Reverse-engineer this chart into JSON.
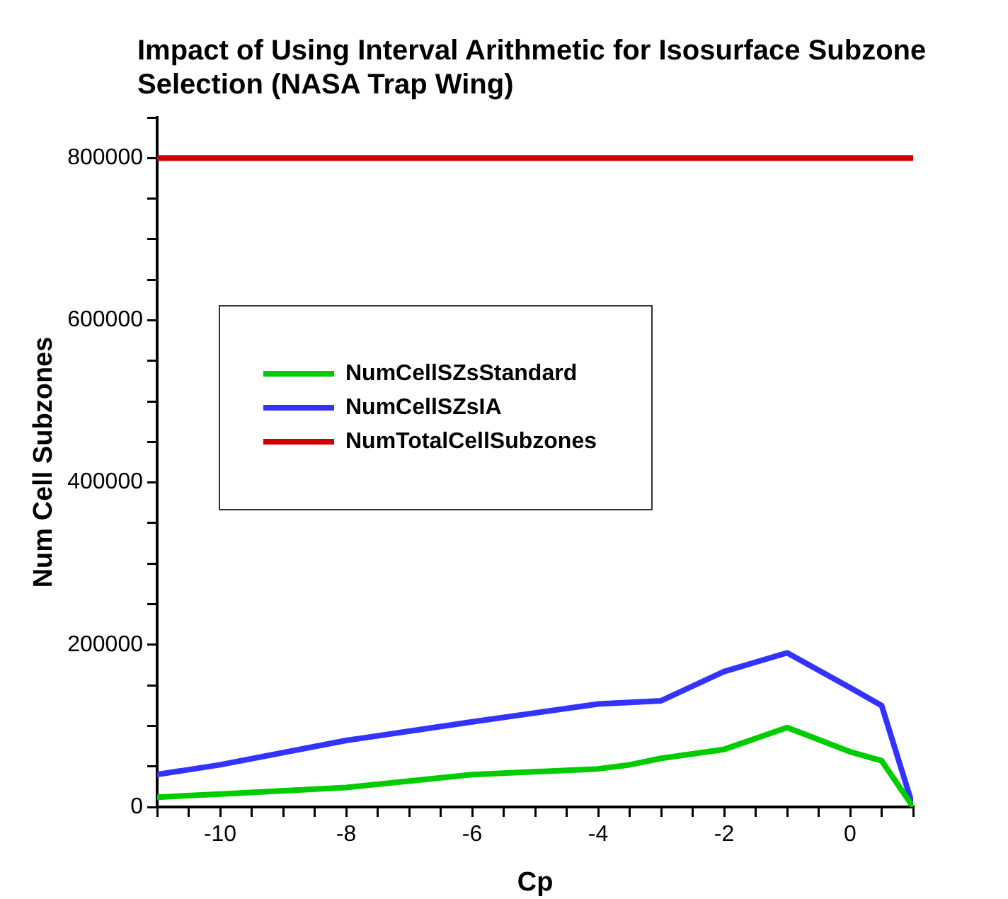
{
  "chart_data": {
    "type": "line",
    "title": "Impact of Using Interval Arithmetic for Isosurface Subzone Selection (NASA Trap Wing)",
    "xlabel": "Cp",
    "ylabel": "Num Cell Subzones",
    "series": [
      {
        "name": "NumCellSZsStandard",
        "color": "#00cc00",
        "x": [
          -11,
          -10,
          -8,
          -6,
          -4,
          -3.5,
          -3,
          -2,
          -1,
          0,
          0.5,
          1
        ],
        "values": [
          12000,
          16000,
          24000,
          40000,
          47000,
          52000,
          60000,
          71000,
          98000,
          68000,
          57000,
          0
        ]
      },
      {
        "name": "NumCellSZsIA",
        "color": "#3333ff",
        "x": [
          -11,
          -10,
          -8,
          -6,
          -4,
          -3,
          -2,
          -1,
          0,
          0.5,
          1
        ],
        "values": [
          40000,
          52000,
          82000,
          105000,
          127000,
          131000,
          167000,
          190000,
          147000,
          125000,
          0
        ]
      },
      {
        "name": "NumTotalCellSubzones",
        "color": "#cc0000",
        "x": [
          -11,
          1
        ],
        "values": [
          800000,
          800000
        ]
      }
    ],
    "xlim": [
      -11,
      1
    ],
    "ylim": [
      0,
      850000
    ],
    "xticks": [
      {
        "value": -11,
        "label": null
      },
      {
        "value": -10.5,
        "label": null
      },
      -10,
      {
        "value": -9.5,
        "label": null
      },
      {
        "value": -9,
        "label": null
      },
      {
        "value": -8.5,
        "label": null
      },
      -8,
      {
        "value": -7.5,
        "label": null
      },
      {
        "value": -7,
        "label": null
      },
      {
        "value": -6.5,
        "label": null
      },
      -6,
      {
        "value": -5.5,
        "label": null
      },
      {
        "value": -5,
        "label": null
      },
      {
        "value": -4.5,
        "label": null
      },
      -4,
      {
        "value": -3.5,
        "label": null
      },
      {
        "value": -3,
        "label": null
      },
      {
        "value": -2.5,
        "label": null
      },
      -2,
      {
        "value": -1.5,
        "label": null
      },
      {
        "value": -1,
        "label": null
      },
      {
        "value": -0.5,
        "label": null
      },
      0,
      {
        "value": 0.5,
        "label": null
      },
      {
        "value": 1,
        "label": null
      }
    ],
    "yticks": [
      0,
      {
        "value": 50000,
        "label": null
      },
      {
        "value": 100000,
        "label": null
      },
      {
        "value": 150000,
        "label": null
      },
      200000,
      {
        "value": 250000,
        "label": null
      },
      {
        "value": 300000,
        "label": null
      },
      {
        "value": 350000,
        "label": null
      },
      400000,
      {
        "value": 450000,
        "label": null
      },
      {
        "value": 500000,
        "label": null
      },
      {
        "value": 550000,
        "label": null
      },
      600000,
      {
        "value": 650000,
        "label": null
      },
      {
        "value": 700000,
        "label": null
      },
      {
        "value": 750000,
        "label": null
      },
      800000,
      {
        "value": 850000,
        "label": null
      }
    ],
    "grid": false,
    "legend": "center left",
    "marker": "none",
    "line_style": "solid"
  }
}
